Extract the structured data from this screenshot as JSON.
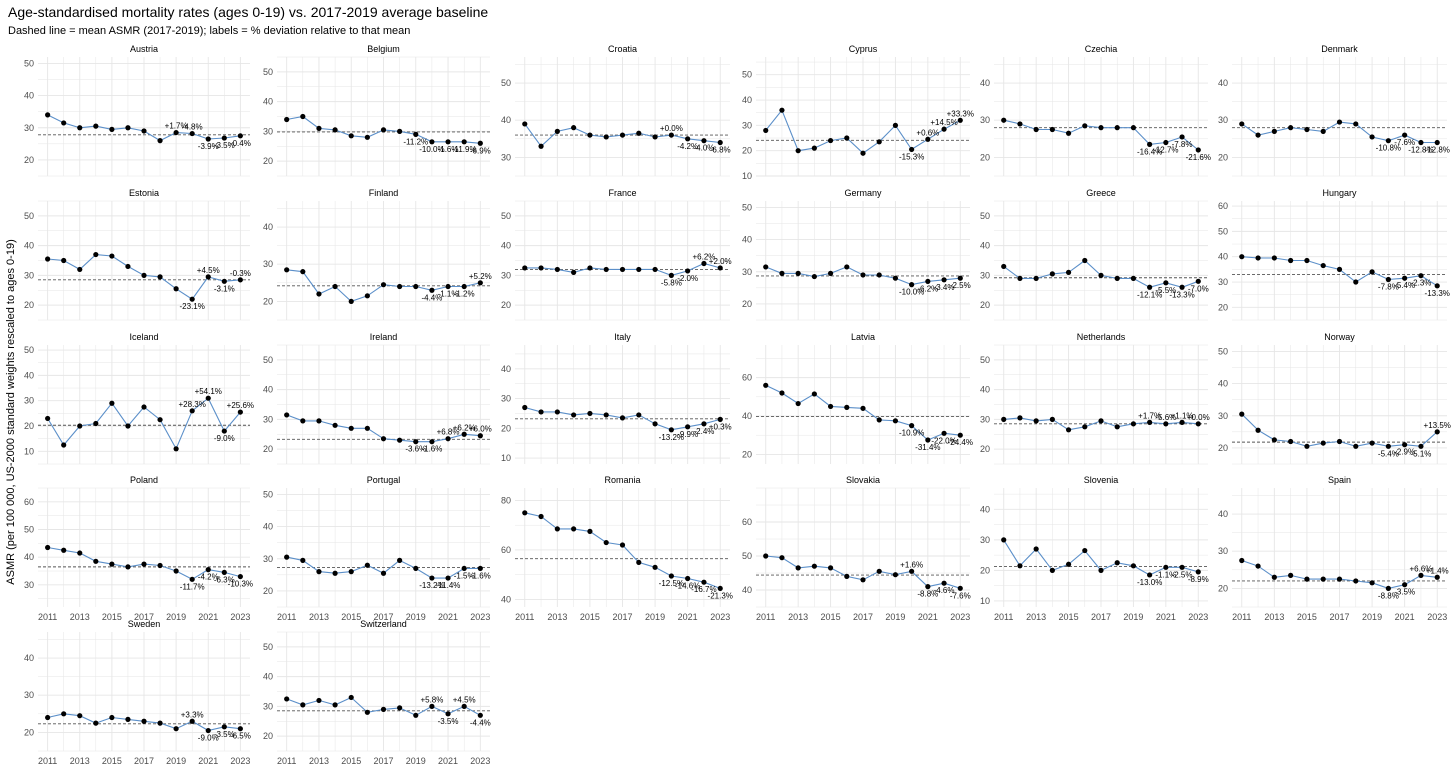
{
  "title": "Age-standardised mortality rates (ages 0-19) vs. 2017-2019 average baseline",
  "subtitle": "Dashed line = mean ASMR (2017-2019); labels = % deviation relative to that mean",
  "ylabel": "ASMR (per 100 000, US-2000 standard weights rescaled to ages 0-19)",
  "x_ticks": [
    2011,
    2013,
    2015,
    2017,
    2019,
    2021,
    2023
  ],
  "colors": {
    "line": "#5b8fc9",
    "point": "#000000",
    "grid": "#e6e6e6",
    "baseline": "#555555"
  },
  "chart_data": [
    {
      "type": "line",
      "panel": "Austria",
      "x": [
        2011,
        2012,
        2013,
        2014,
        2015,
        2016,
        2017,
        2018,
        2019,
        2020,
        2021,
        2022,
        2023
      ],
      "y": [
        34,
        31.5,
        30,
        30.5,
        29.5,
        30,
        29,
        26,
        28.5,
        28.2,
        26.5,
        26.8,
        27.5
      ],
      "baseline": 27.8,
      "labels": [
        "+1.7%",
        "-4.8%",
        "-3.9%",
        "-3.5%",
        "-0.4%"
      ],
      "ylim": [
        15,
        52
      ],
      "yticks": [
        20,
        30,
        40,
        50
      ],
      "bottom_axis": false
    },
    {
      "type": "line",
      "panel": "Belgium",
      "x": [
        2011,
        2012,
        2013,
        2014,
        2015,
        2016,
        2017,
        2018,
        2019,
        2020,
        2021,
        2022,
        2023
      ],
      "y": [
        34,
        35,
        31,
        30.5,
        28.5,
        28,
        30.5,
        30,
        29,
        26.5,
        26.5,
        26.5,
        26
      ],
      "baseline": 29.8,
      "labels": [
        "-11.2%",
        "-10.0%",
        "-1.6%",
        "-11.9%",
        "-6.9%"
      ],
      "ylim": [
        15,
        55
      ],
      "yticks": [
        20,
        30,
        40,
        50
      ],
      "bottom_axis": false
    },
    {
      "type": "line",
      "panel": "Croatia",
      "x": [
        2011,
        2012,
        2013,
        2014,
        2015,
        2016,
        2017,
        2018,
        2019,
        2020,
        2021,
        2022,
        2023
      ],
      "y": [
        39,
        33,
        37,
        38,
        36,
        35.5,
        36,
        36.5,
        35.5,
        36,
        35,
        34.5,
        34
      ],
      "baseline": 36,
      "labels": [
        "+0.0%",
        "-4.2%",
        "-4.0%",
        "-6.8%"
      ],
      "ylim": [
        25,
        57
      ],
      "yticks": [
        30,
        40,
        50
      ],
      "bottom_axis": false
    },
    {
      "type": "line",
      "panel": "Cyprus",
      "x": [
        2011,
        2012,
        2013,
        2014,
        2015,
        2016,
        2017,
        2018,
        2019,
        2020,
        2021,
        2022,
        2023
      ],
      "y": [
        28,
        36,
        20,
        21,
        24,
        25,
        19,
        23.5,
        30,
        20.5,
        24.5,
        28.5,
        32
      ],
      "baseline": 24.1,
      "labels": [
        "-15.3%",
        "+0.6%",
        "+14.5%",
        "+33.3%"
      ],
      "ylim": [
        10,
        57
      ],
      "yticks": [
        10,
        20,
        30,
        40,
        50
      ],
      "bottom_axis": false
    },
    {
      "type": "line",
      "panel": "Czechia",
      "x": [
        2011,
        2012,
        2013,
        2014,
        2015,
        2016,
        2017,
        2018,
        2019,
        2020,
        2021,
        2022,
        2023
      ],
      "y": [
        30,
        29,
        27.5,
        27.5,
        26.5,
        28.5,
        28,
        28,
        28,
        23.5,
        24,
        25.5,
        22
      ],
      "baseline": 28,
      "labels": [
        "-16.4%",
        "-12.7%",
        "-7.8%",
        "-21.6%"
      ],
      "ylim": [
        15,
        47
      ],
      "yticks": [
        20,
        30,
        40
      ],
      "bottom_axis": false
    },
    {
      "type": "line",
      "panel": "Denmark",
      "x": [
        2011,
        2012,
        2013,
        2014,
        2015,
        2016,
        2017,
        2018,
        2019,
        2020,
        2021,
        2022,
        2023
      ],
      "y": [
        29,
        26,
        27,
        28,
        27.5,
        27,
        29.5,
        29,
        25.5,
        24.5,
        26,
        24,
        24
      ],
      "baseline": 28,
      "labels": [
        "-10.8%",
        "-7.6%",
        "-12.8%",
        "-12.8%"
      ],
      "ylim": [
        15,
        47
      ],
      "yticks": [
        20,
        30,
        40
      ],
      "bottom_axis": false
    },
    {
      "type": "line",
      "panel": "Estonia",
      "x": [
        2011,
        2012,
        2013,
        2014,
        2015,
        2016,
        2017,
        2018,
        2019,
        2020,
        2021,
        2022,
        2023
      ],
      "y": [
        35.5,
        35,
        32,
        37,
        36.5,
        33,
        30,
        29.5,
        25.5,
        22,
        29.5,
        28,
        28.5
      ],
      "baseline": 28.5,
      "labels": [
        "-23.1%",
        "+4.5%",
        "-3.1%",
        "-0.3%"
      ],
      "ylim": [
        15,
        55
      ],
      "yticks": [
        20,
        30,
        40,
        50
      ],
      "bottom_axis": false
    },
    {
      "type": "line",
      "panel": "Finland",
      "x": [
        2011,
        2012,
        2013,
        2014,
        2015,
        2016,
        2017,
        2018,
        2019,
        2020,
        2021,
        2022,
        2023
      ],
      "y": [
        28.5,
        28,
        22,
        24,
        20,
        21.5,
        24.5,
        24,
        24,
        23,
        24,
        24,
        25
      ],
      "baseline": 24.2,
      "labels": [
        "-4.4%",
        "-1.1%",
        "-1.2%",
        "+5.2%"
      ],
      "ylim": [
        15,
        47
      ],
      "yticks": [
        20,
        30,
        40
      ],
      "bottom_axis": false
    },
    {
      "type": "line",
      "panel": "France",
      "x": [
        2011,
        2012,
        2013,
        2014,
        2015,
        2016,
        2017,
        2018,
        2019,
        2020,
        2021,
        2022,
        2023
      ],
      "y": [
        32.5,
        32.5,
        32,
        31,
        32.5,
        32,
        32,
        32,
        32,
        30,
        31.5,
        34,
        32.5
      ],
      "baseline": 32,
      "labels": [
        "-5.8%",
        "-2.0%",
        "+6.2%",
        "+2.0%"
      ],
      "ylim": [
        15,
        55
      ],
      "yticks": [
        20,
        30,
        40,
        50
      ],
      "bottom_axis": false
    },
    {
      "type": "line",
      "panel": "Germany",
      "x": [
        2011,
        2012,
        2013,
        2014,
        2015,
        2016,
        2017,
        2018,
        2019,
        2020,
        2021,
        2022,
        2023
      ],
      "y": [
        31.5,
        29.5,
        29.5,
        28.5,
        29.5,
        31.5,
        29,
        29,
        28,
        26,
        27,
        27.5,
        28
      ],
      "baseline": 28.7,
      "labels": [
        "-10.0%",
        "-6.2%",
        "-3.4%",
        "-2.5%"
      ],
      "ylim": [
        15,
        52
      ],
      "yticks": [
        20,
        30,
        40,
        50
      ],
      "bottom_axis": false
    },
    {
      "type": "line",
      "panel": "Greece",
      "x": [
        2011,
        2012,
        2013,
        2014,
        2015,
        2016,
        2017,
        2018,
        2019,
        2020,
        2021,
        2022,
        2023
      ],
      "y": [
        33,
        29,
        29,
        30.5,
        31,
        35,
        30,
        29,
        29,
        26,
        27.5,
        26,
        28
      ],
      "baseline": 29.2,
      "labels": [
        "-12.1%",
        "-5.5%",
        "-13.3%",
        "-7.0%"
      ],
      "ylim": [
        15,
        55
      ],
      "yticks": [
        20,
        30,
        40,
        50
      ],
      "bottom_axis": false
    },
    {
      "type": "line",
      "panel": "Hungary",
      "x": [
        2011,
        2012,
        2013,
        2014,
        2015,
        2016,
        2017,
        2018,
        2019,
        2020,
        2021,
        2022,
        2023
      ],
      "y": [
        40,
        39.5,
        39.5,
        38.5,
        38.5,
        36.5,
        35,
        30,
        34,
        31,
        31.5,
        32.5,
        28.5
      ],
      "baseline": 33,
      "labels": [
        "-7.8%",
        "-5.4%",
        "-2.3%",
        "-13.3%"
      ],
      "ylim": [
        15,
        62
      ],
      "yticks": [
        20,
        30,
        40,
        50,
        60
      ],
      "bottom_axis": false
    },
    {
      "type": "line",
      "panel": "Iceland",
      "x": [
        2011,
        2012,
        2013,
        2014,
        2015,
        2016,
        2017,
        2018,
        2019,
        2020,
        2021,
        2022,
        2023
      ],
      "y": [
        23,
        12.5,
        20,
        21,
        29,
        20,
        27.5,
        22.5,
        11,
        26,
        31,
        18,
        25.5
      ],
      "baseline": 20.3,
      "labels": [
        "+28.3%",
        "+54.1%",
        "-9.0%",
        "+25.6%"
      ],
      "ylim": [
        5,
        52
      ],
      "yticks": [
        10,
        20,
        30,
        40,
        50
      ],
      "bottom_axis": false
    },
    {
      "type": "line",
      "panel": "Ireland",
      "x": [
        2011,
        2012,
        2013,
        2014,
        2015,
        2016,
        2017,
        2018,
        2019,
        2020,
        2021,
        2022,
        2023
      ],
      "y": [
        31.5,
        29.5,
        29.5,
        28,
        27,
        27,
        23.5,
        23,
        22.5,
        22.5,
        23.5,
        25,
        24.5
      ],
      "baseline": 23.3,
      "labels": [
        "-3.6%",
        "-1.6%",
        "+6.8%",
        "+6.2%",
        "+6.0%"
      ],
      "ylim": [
        15,
        55
      ],
      "yticks": [
        20,
        30,
        40,
        50
      ],
      "bottom_axis": false
    },
    {
      "type": "line",
      "panel": "Italy",
      "x": [
        2011,
        2012,
        2013,
        2014,
        2015,
        2016,
        2017,
        2018,
        2019,
        2020,
        2021,
        2022,
        2023
      ],
      "y": [
        27,
        25.5,
        25.5,
        24.5,
        25,
        24.5,
        23.5,
        24.5,
        21.5,
        19.5,
        20.5,
        21.5,
        23
      ],
      "baseline": 23.2,
      "labels": [
        "-13.2%",
        "-9.9%",
        "-2.4%",
        "+0.3%"
      ],
      "ylim": [
        8,
        48
      ],
      "yticks": [
        10,
        20,
        30,
        40
      ],
      "bottom_axis": false
    },
    {
      "type": "line",
      "panel": "Latvia",
      "x": [
        2011,
        2012,
        2013,
        2014,
        2015,
        2016,
        2017,
        2018,
        2019,
        2020,
        2021,
        2022,
        2023
      ],
      "y": [
        56,
        52,
        46.5,
        51.5,
        45,
        44.5,
        44,
        38,
        37.5,
        35,
        27.5,
        31,
        30
      ],
      "baseline": 39.8,
      "labels": [
        "-10.9%",
        "-31.4%",
        "-22.0%",
        "-24.4%"
      ],
      "ylim": [
        15,
        77
      ],
      "yticks": [
        20,
        40,
        60
      ],
      "bottom_axis": false
    },
    {
      "type": "line",
      "panel": "Netherlands",
      "x": [
        2011,
        2012,
        2013,
        2014,
        2015,
        2016,
        2017,
        2018,
        2019,
        2020,
        2021,
        2022,
        2023
      ],
      "y": [
        30,
        30.5,
        29.5,
        30,
        26.5,
        27.5,
        29.5,
        27.5,
        28.5,
        29,
        28.5,
        29,
        28.5
      ],
      "baseline": 28.5,
      "labels": [
        "+1.7%",
        "-5.6%",
        "+1.1%",
        "+0.0%"
      ],
      "ylim": [
        15,
        55
      ],
      "yticks": [
        20,
        30,
        40,
        50
      ],
      "bottom_axis": false
    },
    {
      "type": "line",
      "panel": "Norway",
      "x": [
        2011,
        2012,
        2013,
        2014,
        2015,
        2016,
        2017,
        2018,
        2019,
        2020,
        2021,
        2022,
        2023
      ],
      "y": [
        30.5,
        25.5,
        22.5,
        22,
        20.5,
        21.5,
        22,
        20.5,
        21.5,
        20.5,
        21,
        20.5,
        25
      ],
      "baseline": 21.8,
      "labels": [
        "-5.4%",
        "-2.9%",
        "-5.1%",
        "+13.5%"
      ],
      "ylim": [
        15,
        52
      ],
      "yticks": [
        20,
        30,
        40,
        50
      ],
      "bottom_axis": false
    },
    {
      "type": "line",
      "panel": "Poland",
      "x": [
        2011,
        2012,
        2013,
        2014,
        2015,
        2016,
        2017,
        2018,
        2019,
        2020,
        2021,
        2022,
        2023
      ],
      "y": [
        43.5,
        42.5,
        41.5,
        38.5,
        37.5,
        36.5,
        37.5,
        37,
        35,
        32,
        35.5,
        34.5,
        33
      ],
      "baseline": 36.5,
      "labels": [
        "-11.7%",
        "-4.2%",
        "-6.3%",
        "-10.3%"
      ],
      "ylim": [
        22,
        65
      ],
      "yticks": [
        30,
        40,
        50,
        60
      ],
      "bottom_axis": true
    },
    {
      "type": "line",
      "panel": "Portugal",
      "x": [
        2011,
        2012,
        2013,
        2014,
        2015,
        2016,
        2017,
        2018,
        2019,
        2020,
        2021,
        2022,
        2023
      ],
      "y": [
        30.5,
        29.5,
        26,
        25.5,
        26,
        28,
        25.5,
        29.5,
        27,
        24,
        24,
        27,
        27
      ],
      "baseline": 27.3,
      "labels": [
        "-13.2%",
        "-11.4%",
        "-1.5%",
        "-1.6%"
      ],
      "ylim": [
        15,
        52
      ],
      "yticks": [
        20,
        30,
        40,
        50
      ],
      "bottom_axis": true
    },
    {
      "type": "line",
      "panel": "Romania",
      "x": [
        2011,
        2012,
        2013,
        2014,
        2015,
        2016,
        2017,
        2018,
        2019,
        2020,
        2021,
        2022,
        2023
      ],
      "y": [
        75,
        73.5,
        68.5,
        68.5,
        67.5,
        63,
        62,
        55,
        53,
        49.5,
        48.5,
        47,
        44.5
      ],
      "baseline": 56.5,
      "labels": [
        "-12.5%",
        "-14.6%",
        "-16.7%",
        "-21.3%"
      ],
      "ylim": [
        37,
        85
      ],
      "yticks": [
        40,
        60,
        80
      ],
      "bottom_axis": true
    },
    {
      "type": "line",
      "panel": "Slovakia",
      "x": [
        2011,
        2012,
        2013,
        2014,
        2015,
        2016,
        2017,
        2018,
        2019,
        2020,
        2021,
        2022,
        2023
      ],
      "y": [
        50,
        49.5,
        46.5,
        47,
        46.5,
        44,
        43,
        45.5,
        44.5,
        45.5,
        41,
        42,
        40.5
      ],
      "baseline": 44.4,
      "labels": [
        "+1.6%",
        "-8.8%",
        "-4.6%",
        "-7.6%"
      ],
      "ylim": [
        35,
        70
      ],
      "yticks": [
        40,
        50,
        60
      ],
      "bottom_axis": true
    },
    {
      "type": "line",
      "panel": "Slovenia",
      "x": [
        2011,
        2012,
        2013,
        2014,
        2015,
        2016,
        2017,
        2018,
        2019,
        2020,
        2021,
        2022,
        2023
      ],
      "y": [
        30,
        21.5,
        27,
        20,
        22,
        26.5,
        20,
        22.5,
        21.5,
        18.5,
        21,
        21,
        19.5
      ],
      "baseline": 21.3,
      "labels": [
        "-13.0%",
        "-1.1%",
        "-2.5%",
        "-8.9%"
      ],
      "ylim": [
        8,
        47
      ],
      "yticks": [
        10,
        20,
        30,
        40
      ],
      "bottom_axis": true
    },
    {
      "type": "line",
      "panel": "Spain",
      "x": [
        2011,
        2012,
        2013,
        2014,
        2015,
        2016,
        2017,
        2018,
        2019,
        2020,
        2021,
        2022,
        2023
      ],
      "y": [
        27.5,
        26,
        23,
        23.5,
        22.5,
        22.5,
        22.5,
        22,
        21.5,
        20,
        21,
        23.5,
        23
      ],
      "baseline": 22,
      "labels": [
        "-8.8%",
        "-3.5%",
        "+6.6%",
        "+1.4%"
      ],
      "ylim": [
        15,
        47
      ],
      "yticks": [
        20,
        30,
        40
      ],
      "bottom_axis": true
    },
    {
      "type": "line",
      "panel": "Sweden",
      "x": [
        2011,
        2012,
        2013,
        2014,
        2015,
        2016,
        2017,
        2018,
        2019,
        2020,
        2021,
        2022,
        2023
      ],
      "y": [
        24,
        25,
        24.5,
        22.5,
        24,
        23.5,
        23,
        22.5,
        21,
        23,
        20.5,
        21.5,
        21
      ],
      "baseline": 22.3,
      "labels": [
        "+3.3%",
        "-9.0%",
        "-3.5%",
        "-6.5%"
      ],
      "ylim": [
        15,
        47
      ],
      "yticks": [
        20,
        30,
        40
      ],
      "bottom_axis": true
    },
    {
      "type": "line",
      "panel": "Switzerland",
      "x": [
        2011,
        2012,
        2013,
        2014,
        2015,
        2016,
        2017,
        2018,
        2019,
        2020,
        2021,
        2022,
        2023
      ],
      "y": [
        32.5,
        30.5,
        32,
        30.5,
        33,
        28,
        29,
        29.5,
        27,
        30,
        27.5,
        30,
        27
      ],
      "baseline": 28.5,
      "labels": [
        "+5.8%",
        "-3.5%",
        "+4.5%",
        "-4.4%"
      ],
      "ylim": [
        15,
        55
      ],
      "yticks": [
        20,
        30,
        40,
        50
      ],
      "bottom_axis": true
    }
  ]
}
